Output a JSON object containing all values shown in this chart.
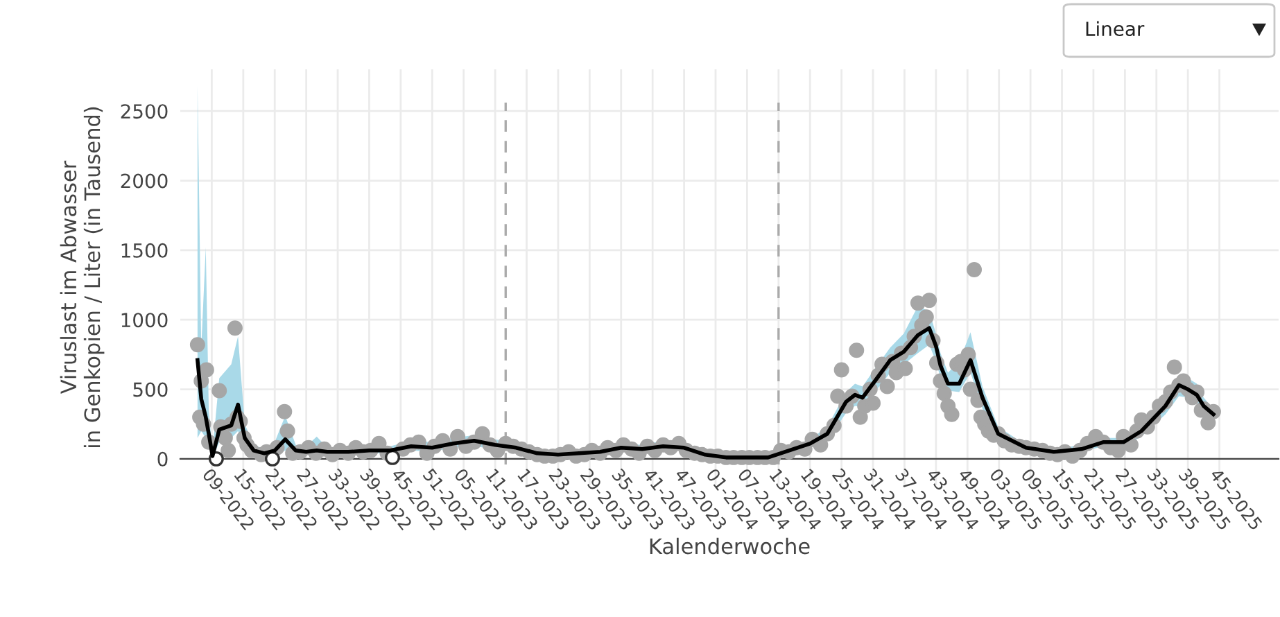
{
  "chart_data": {
    "type": "line",
    "xlabel": "Kalenderwoche",
    "ylabel": "Viruslast im Abwasser\nin Genkopien / Liter (in Tausend)",
    "annotations": [
      "Linear"
    ],
    "xlim": [
      "2022-01-17",
      "2026-01-21"
    ],
    "ylim": [
      -190,
      2800
    ],
    "yticks": [
      0,
      500,
      1000,
      1500,
      2000,
      2500
    ],
    "xticks": [
      {
        "value": "2022-02-28",
        "label": "09-2022"
      },
      {
        "value": "2022-04-11",
        "label": "15-2022"
      },
      {
        "value": "2022-05-23",
        "label": "21-2022"
      },
      {
        "value": "2022-07-04",
        "label": "27-2022"
      },
      {
        "value": "2022-08-15",
        "label": "33-2022"
      },
      {
        "value": "2022-09-26",
        "label": "39-2022"
      },
      {
        "value": "2022-11-07",
        "label": "45-2022"
      },
      {
        "value": "2022-12-19",
        "label": "51-2022"
      },
      {
        "value": "2023-01-30",
        "label": "05-2023"
      },
      {
        "value": "2023-03-13",
        "label": "11-2023"
      },
      {
        "value": "2023-04-24",
        "label": "17-2023"
      },
      {
        "value": "2023-06-05",
        "label": "23-2023"
      },
      {
        "value": "2023-07-17",
        "label": "29-2023"
      },
      {
        "value": "2023-08-28",
        "label": "35-2023"
      },
      {
        "value": "2023-10-09",
        "label": "41-2023"
      },
      {
        "value": "2023-11-20",
        "label": "47-2023"
      },
      {
        "value": "2024-01-01",
        "label": "01-2024"
      },
      {
        "value": "2024-02-12",
        "label": "07-2024"
      },
      {
        "value": "2024-03-25",
        "label": "13-2024"
      },
      {
        "value": "2024-05-06",
        "label": "19-2024"
      },
      {
        "value": "2024-06-17",
        "label": "25-2024"
      },
      {
        "value": "2024-07-29",
        "label": "31-2024"
      },
      {
        "value": "2024-09-09",
        "label": "37-2024"
      },
      {
        "value": "2024-10-21",
        "label": "43-2024"
      },
      {
        "value": "2024-12-02",
        "label": "49-2024"
      },
      {
        "value": "2025-01-13",
        "label": "03-2025"
      },
      {
        "value": "2025-02-24",
        "label": "09-2025"
      },
      {
        "value": "2025-04-07",
        "label": "15-2025"
      },
      {
        "value": "2025-05-19",
        "label": "21-2025"
      },
      {
        "value": "2025-06-30",
        "label": "27-2025"
      },
      {
        "value": "2025-08-11",
        "label": "33-2025"
      },
      {
        "value": "2025-09-22",
        "label": "39-2025"
      },
      {
        "value": "2025-11-03",
        "label": "45-2025"
      }
    ],
    "grid": true,
    "legend": false,
    "ref_lines": [
      {
        "axis": "x",
        "value": "2023-03-27",
        "color": "#aaaaaa",
        "line_style": "dashed"
      },
      {
        "axis": "x",
        "value": "2024-03-25",
        "color": "#aaaaaa",
        "line_style": "dashed"
      }
    ],
    "series": [
      {
        "color": "#000000",
        "marker": "none",
        "line_style": "solid",
        "x": [
          "2022-02-09",
          "2022-02-14",
          "2022-02-20",
          "2022-02-24",
          "2022-03-01",
          "2022-03-10",
          "2022-03-26",
          "2022-04-04",
          "2022-04-13",
          "2022-04-25",
          "2022-05-09",
          "2022-05-23",
          "2022-06-06",
          "2022-06-20",
          "2022-07-04",
          "2022-07-18",
          "2022-08-01",
          "2022-08-29",
          "2022-09-26",
          "2022-10-24",
          "2022-11-21",
          "2022-12-19",
          "2023-01-16",
          "2023-02-13",
          "2023-03-13",
          "2023-04-10",
          "2023-05-08",
          "2023-06-05",
          "2023-07-03",
          "2023-07-31",
          "2023-08-28",
          "2023-09-25",
          "2023-10-23",
          "2023-11-20",
          "2023-12-18",
          "2024-01-15",
          "2024-02-12",
          "2024-03-11",
          "2024-04-08",
          "2024-05-06",
          "2024-05-29",
          "2024-06-23",
          "2024-07-05",
          "2024-07-15",
          "2024-08-02",
          "2024-08-21",
          "2024-09-08",
          "2024-09-27",
          "2024-10-12",
          "2024-10-21",
          "2024-10-27",
          "2024-11-06",
          "2024-11-21",
          "2024-12-06",
          "2024-12-22",
          "2025-01-12",
          "2025-02-18",
          "2025-03-27",
          "2025-05-03",
          "2025-06-01",
          "2025-06-28",
          "2025-07-22",
          "2025-08-23",
          "2025-09-10",
          "2025-09-22",
          "2025-10-04",
          "2025-10-13",
          "2025-10-26"
        ],
        "lower": [
          150,
          200,
          150,
          100,
          0,
          120,
          150,
          200,
          80,
          30,
          20,
          30,
          60,
          30,
          30,
          40,
          30,
          30,
          40,
          40,
          60,
          50,
          80,
          90,
          70,
          60,
          30,
          20,
          20,
          40,
          60,
          50,
          60,
          60,
          20,
          10,
          0,
          0,
          40,
          80,
          130,
          330,
          380,
          370,
          490,
          620,
          680,
          760,
          820,
          700,
          580,
          490,
          480,
          620,
          360,
          140,
          60,
          40,
          50,
          90,
          90,
          160,
          320,
          450,
          440,
          400,
          320,
          260
        ],
        "upper": [
          2680,
          800,
          1520,
          350,
          60,
          580,
          680,
          880,
          250,
          100,
          70,
          120,
          310,
          100,
          90,
          160,
          80,
          80,
          90,
          90,
          130,
          120,
          150,
          170,
          140,
          110,
          60,
          50,
          60,
          70,
          110,
          100,
          130,
          110,
          50,
          20,
          20,
          20,
          80,
          140,
          230,
          480,
          540,
          520,
          660,
          800,
          900,
          1100,
          1060,
          900,
          760,
          620,
          700,
          910,
          520,
          230,
          100,
          70,
          100,
          150,
          150,
          250,
          430,
          600,
          580,
          540,
          440,
          360
        ],
        "values": [
          710,
          430,
          300,
          180,
          20,
          210,
          240,
          390,
          150,
          60,
          40,
          60,
          140,
          60,
          50,
          60,
          50,
          50,
          60,
          60,
          90,
          80,
          110,
          130,
          100,
          80,
          40,
          30,
          40,
          50,
          80,
          70,
          90,
          80,
          30,
          10,
          10,
          10,
          60,
          110,
          180,
          410,
          460,
          440,
          570,
          710,
          770,
          890,
          940,
          810,
          670,
          540,
          540,
          710,
          440,
          180,
          80,
          50,
          70,
          120,
          120,
          200,
          380,
          530,
          500,
          460,
          380,
          320
        ]
      },
      {
        "color": "#a6a6a6",
        "type": "scatter",
        "marker": "circle",
        "x": [
          "2022-02-09",
          "2022-02-12",
          "2022-02-14",
          "2022-02-17",
          "2022-02-21",
          "2022-02-24",
          "2022-03-10",
          "2022-03-12",
          "2022-03-18",
          "2022-03-22",
          "2022-03-26",
          "2022-03-31",
          "2022-04-03",
          "2022-04-07",
          "2022-04-12",
          "2022-04-16",
          "2022-04-22",
          "2022-05-05",
          "2022-05-12",
          "2022-05-26",
          "2022-06-05",
          "2022-06-09",
          "2022-06-16",
          "2022-06-26",
          "2022-07-07",
          "2022-07-17",
          "2022-07-28",
          "2022-08-08",
          "2022-08-18",
          "2022-08-29",
          "2022-09-08",
          "2022-09-18",
          "2022-09-28",
          "2022-10-09",
          "2022-10-20",
          "2022-11-10",
          "2022-11-20",
          "2022-12-01",
          "2022-12-12",
          "2022-12-22",
          "2023-01-02",
          "2023-01-12",
          "2023-01-22",
          "2023-02-02",
          "2023-02-13",
          "2023-02-24",
          "2023-03-06",
          "2023-03-16",
          "2023-03-27",
          "2023-04-06",
          "2023-04-17",
          "2023-04-27",
          "2023-05-08",
          "2023-05-18",
          "2023-05-29",
          "2023-06-08",
          "2023-06-19",
          "2023-06-29",
          "2023-07-10",
          "2023-07-20",
          "2023-07-31",
          "2023-08-10",
          "2023-08-21",
          "2023-08-31",
          "2023-09-11",
          "2023-09-21",
          "2023-10-02",
          "2023-10-12",
          "2023-10-23",
          "2023-11-02",
          "2023-11-13",
          "2023-11-23",
          "2023-12-04",
          "2023-12-14",
          "2023-12-25",
          "2024-01-04",
          "2024-01-15",
          "2024-01-25",
          "2024-02-05",
          "2024-02-15",
          "2024-02-26",
          "2024-03-07",
          "2024-03-18",
          "2024-03-28",
          "2024-04-08",
          "2024-04-18",
          "2024-04-29",
          "2024-05-09",
          "2024-05-20",
          "2024-05-29",
          "2024-06-07",
          "2024-06-12",
          "2024-06-17",
          "2024-06-23",
          "2024-07-01",
          "2024-07-07",
          "2024-07-12",
          "2024-07-18",
          "2024-07-25",
          "2024-07-29",
          "2024-08-05",
          "2024-08-10",
          "2024-08-17",
          "2024-08-24",
          "2024-08-29",
          "2024-09-05",
          "2024-09-10",
          "2024-09-17",
          "2024-09-22",
          "2024-09-27",
          "2024-10-02",
          "2024-10-08",
          "2024-10-12",
          "2024-10-17",
          "2024-10-22",
          "2024-10-27",
          "2024-11-01",
          "2024-11-06",
          "2024-11-11",
          "2024-11-18",
          "2024-11-23",
          "2024-11-28",
          "2024-12-03",
          "2024-12-06",
          "2024-12-11",
          "2024-12-16",
          "2024-12-20",
          "2024-12-25",
          "2024-12-30",
          "2025-01-06",
          "2025-01-12",
          "2025-01-20",
          "2025-01-30",
          "2025-02-09",
          "2025-02-18",
          "2025-03-01",
          "2025-03-12",
          "2025-03-22",
          "2025-04-01",
          "2025-04-11",
          "2025-04-21",
          "2025-05-01",
          "2025-05-11",
          "2025-05-22",
          "2025-06-01",
          "2025-06-11",
          "2025-06-21",
          "2025-06-28",
          "2025-07-08",
          "2025-07-16",
          "2025-07-22",
          "2025-07-30",
          "2025-08-07",
          "2025-08-15",
          "2025-08-23",
          "2025-08-30",
          "2025-09-04",
          "2025-09-10",
          "2025-09-16",
          "2025-09-22",
          "2025-09-28",
          "2025-10-04",
          "2025-10-10",
          "2025-10-13",
          "2025-10-19",
          "2025-10-26"
        ],
        "values": [
          820,
          300,
          560,
          250,
          640,
          120,
          490,
          230,
          150,
          60,
          250,
          940,
          300,
          270,
          150,
          100,
          60,
          30,
          50,
          80,
          340,
          200,
          40,
          50,
          80,
          40,
          70,
          30,
          60,
          40,
          80,
          50,
          60,
          110,
          40,
          70,
          100,
          120,
          40,
          90,
          130,
          70,
          160,
          90,
          120,
          180,
          100,
          60,
          110,
          90,
          70,
          50,
          30,
          20,
          20,
          30,
          50,
          20,
          30,
          60,
          40,
          80,
          60,
          100,
          70,
          40,
          90,
          60,
          100,
          80,
          110,
          60,
          40,
          30,
          20,
          20,
          10,
          10,
          10,
          10,
          10,
          10,
          10,
          60,
          50,
          80,
          70,
          140,
          100,
          180,
          240,
          450,
          640,
          380,
          450,
          780,
          300,
          380,
          500,
          400,
          600,
          680,
          520,
          700,
          620,
          760,
          650,
          800,
          880,
          1120,
          960,
          1020,
          1140,
          850,
          690,
          560,
          470,
          380,
          320,
          680,
          700,
          640,
          750,
          500,
          1360,
          420,
          300,
          250,
          200,
          170,
          180,
          130,
          100,
          90,
          80,
          70,
          60,
          40,
          30,
          50,
          20,
          60,
          110,
          160,
          120,
          80,
          60,
          160,
          100,
          200,
          280,
          230,
          300,
          380,
          410,
          480,
          660,
          530,
          560,
          500,
          440,
          480,
          350,
          360,
          260,
          340
        ]
      },
      {
        "type": "scatter",
        "color": "#ffffff",
        "marker": "circle",
        "x": [
          "2022-03-06",
          "2022-05-20",
          "2022-10-27"
        ],
        "values": [
          0,
          0,
          10
        ]
      }
    ]
  }
}
